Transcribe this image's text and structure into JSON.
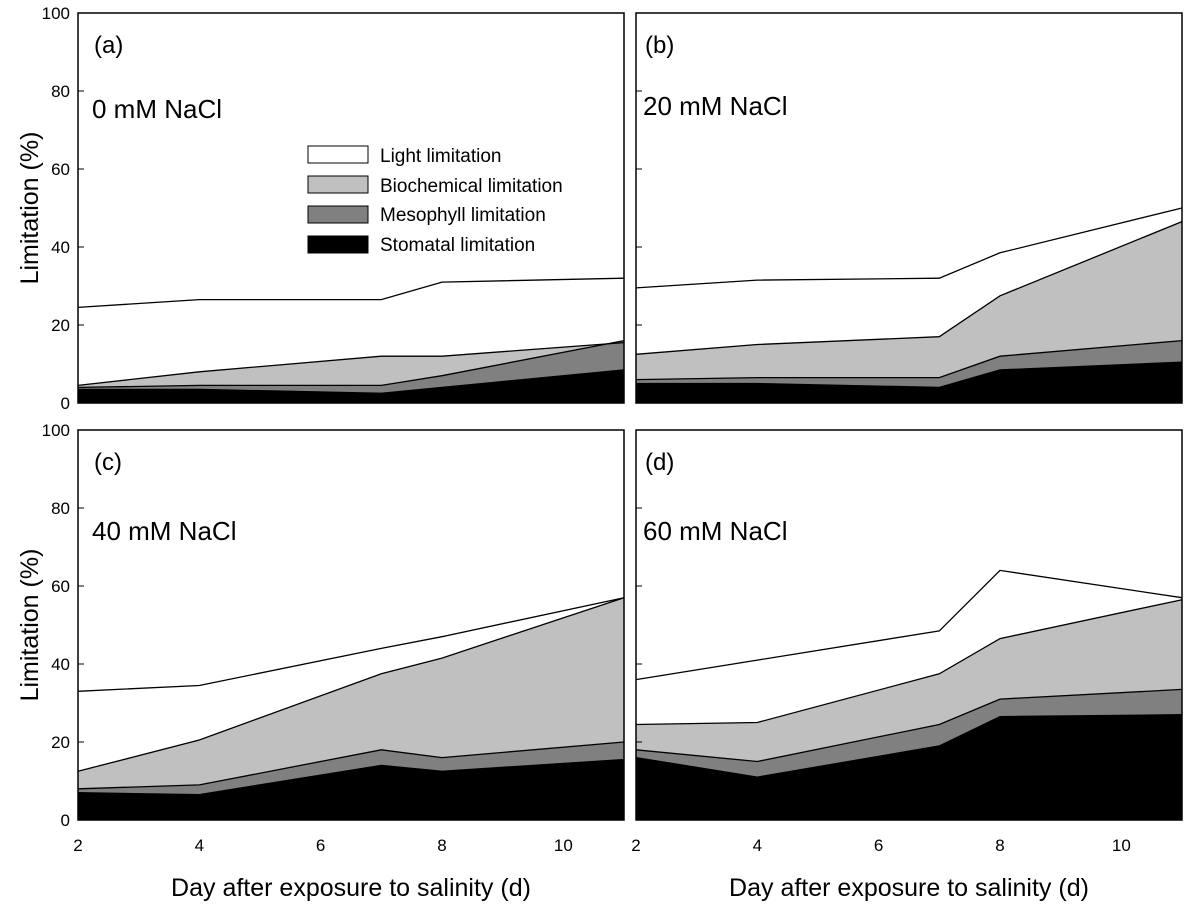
{
  "chart_data": [
    {
      "type": "area",
      "panel": "(a)",
      "condition": "0 mM NaCl",
      "x": [
        2,
        4,
        7,
        8,
        11
      ],
      "xlim": [
        2,
        11
      ],
      "ylim": [
        0,
        100
      ],
      "ylabel": "Limitation (%)",
      "xlabel": "",
      "stacked_boundaries": [
        {
          "name": "Stomatal limitation",
          "values": [
            3.5,
            3.5,
            2.5,
            4,
            8.5
          ]
        },
        {
          "name": "Mesophyll limitation",
          "values": [
            4,
            4.5,
            4.5,
            7,
            16
          ]
        },
        {
          "name": "Biochemical limitation",
          "values": [
            4.5,
            8,
            12,
            12,
            15.5
          ]
        },
        {
          "name": "Light limitation",
          "values": [
            24.5,
            26.5,
            26.5,
            31,
            32
          ]
        }
      ]
    },
    {
      "type": "area",
      "panel": "(b)",
      "condition": "20 mM NaCl",
      "x": [
        2,
        4,
        7,
        8,
        11
      ],
      "xlim": [
        2,
        11
      ],
      "ylim": [
        0,
        100
      ],
      "ylabel": "",
      "xlabel": "",
      "stacked_boundaries": [
        {
          "name": "Stomatal limitation",
          "values": [
            5,
            5,
            4,
            8.5,
            10.5
          ]
        },
        {
          "name": "Mesophyll limitation",
          "values": [
            6,
            6.5,
            6.5,
            12,
            16
          ]
        },
        {
          "name": "Biochemical limitation",
          "values": [
            12.5,
            15,
            17,
            27.5,
            46.5
          ]
        },
        {
          "name": "Light limitation",
          "values": [
            29.5,
            31.5,
            32,
            38.5,
            50
          ]
        }
      ]
    },
    {
      "type": "area",
      "panel": "(c)",
      "condition": "40 mM NaCl",
      "x": [
        2,
        4,
        7,
        8,
        11
      ],
      "xlim": [
        2,
        11
      ],
      "ylim": [
        0,
        100
      ],
      "ylabel": "Limitation (%)",
      "xlabel": "Day after exposure to salinity (d)",
      "stacked_boundaries": [
        {
          "name": "Stomatal limitation",
          "values": [
            7,
            6.5,
            14,
            12.5,
            15.5
          ]
        },
        {
          "name": "Mesophyll limitation",
          "values": [
            8,
            9,
            18,
            16,
            20
          ]
        },
        {
          "name": "Biochemical limitation",
          "values": [
            12.5,
            20.5,
            37.5,
            41.5,
            57
          ]
        },
        {
          "name": "Light limitation",
          "values": [
            33,
            34.5,
            44,
            47,
            57
          ]
        }
      ]
    },
    {
      "type": "area",
      "panel": "(d)",
      "condition": "60 mM NaCl",
      "x": [
        2,
        4,
        7,
        8,
        11
      ],
      "xlim": [
        2,
        11
      ],
      "ylim": [
        0,
        100
      ],
      "ylabel": "",
      "xlabel": "Day after exposure to salinity (d)",
      "stacked_boundaries": [
        {
          "name": "Stomatal limitation",
          "values": [
            16,
            11,
            19,
            26.5,
            27
          ]
        },
        {
          "name": "Mesophyll limitation",
          "values": [
            18,
            15,
            24.5,
            31,
            33.5
          ]
        },
        {
          "name": "Biochemical limitation",
          "values": [
            24.5,
            25,
            37.5,
            46.5,
            56.5
          ]
        },
        {
          "name": "Light limitation",
          "values": [
            36,
            41,
            48.5,
            64,
            57
          ]
        }
      ]
    }
  ],
  "legend": {
    "placement": "inside panel (a), center",
    "items": [
      {
        "label": "Light limitation",
        "color": "#ffffff"
      },
      {
        "label": "Biochemical limitation",
        "color": "#c0c0c0"
      },
      {
        "label": "Mesophyll limitation",
        "color": "#808080"
      },
      {
        "label": "Stomatal limitation",
        "color": "#000000"
      }
    ]
  },
  "axis": {
    "y_ticks": [
      "0",
      "20",
      "40",
      "60",
      "80",
      "100"
    ],
    "x_ticks": [
      "2",
      "4",
      "6",
      "8",
      "10"
    ]
  },
  "fill_colors": {
    "light": "#ffffff",
    "biochemical": "#c0c0c0",
    "mesophyll": "#808080",
    "stomatal": "#000000"
  }
}
